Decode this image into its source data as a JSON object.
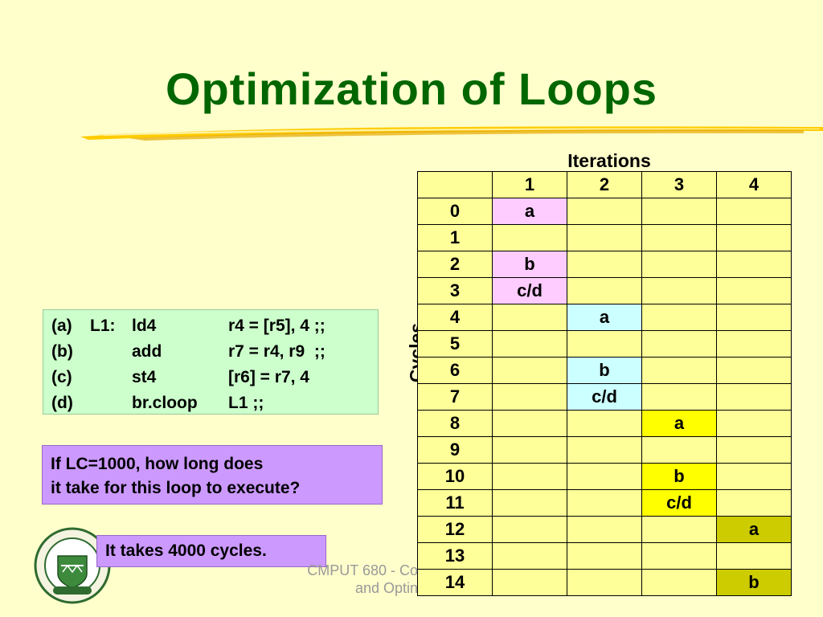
{
  "title": "Optimization of Loops",
  "table": {
    "top_label": "Iterations",
    "side_label": "Cycles",
    "header": [
      "",
      "1",
      "2",
      "3",
      "4"
    ],
    "rows": [
      [
        "0",
        "a",
        "",
        "",
        ""
      ],
      [
        "1",
        "",
        "",
        "",
        ""
      ],
      [
        "2",
        "b",
        "",
        "",
        ""
      ],
      [
        "3",
        "c/d",
        "",
        "",
        ""
      ],
      [
        "4",
        "",
        "a",
        "",
        ""
      ],
      [
        "5",
        "",
        "",
        "",
        ""
      ],
      [
        "6",
        "",
        "b",
        "",
        ""
      ],
      [
        "7",
        "",
        "c/d",
        "",
        ""
      ],
      [
        "8",
        "",
        "",
        "a",
        ""
      ],
      [
        "9",
        "",
        "",
        "",
        ""
      ],
      [
        "10",
        "",
        "",
        "b",
        ""
      ],
      [
        "11",
        "",
        "",
        "c/d",
        ""
      ],
      [
        "12",
        "",
        "",
        "",
        "a"
      ],
      [
        "13",
        "",
        "",
        "",
        ""
      ],
      [
        "14",
        "",
        "",
        "",
        "b"
      ]
    ],
    "colors": {
      "cell": "#ffff99",
      "iter1": "#ffccff",
      "iter2": "#ccffff",
      "iter3": "#ffff00",
      "iter4": "#cccc00"
    }
  },
  "code": [
    [
      "(a)",
      "L1:",
      "ld4",
      "r4 = [r5], 4 ;;"
    ],
    [
      "(b)",
      "",
      "add",
      "r7 = r4, r9  ;;"
    ],
    [
      "(c)",
      "",
      "st4",
      "[r6] = r7, 4"
    ],
    [
      "(d)",
      "",
      "br.cloop",
      "L1 ;;"
    ]
  ],
  "question": [
    "If LC=1000, how long does",
    "it take for this loop to execute?"
  ],
  "answer": "It takes 4000 cycles.",
  "footer": [
    "CMPUT 680 - Co",
    "and Optin"
  ]
}
